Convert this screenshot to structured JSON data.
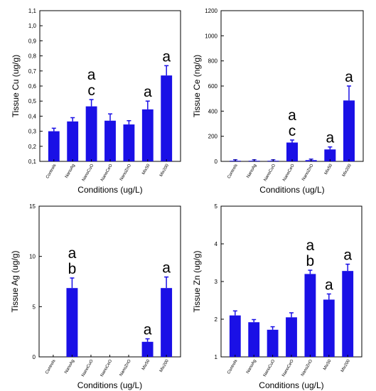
{
  "colors": {
    "bar": "#1a10e6",
    "axis": "#000000"
  },
  "chart_data": [
    {
      "type": "bar",
      "ylabel": "Tissue Cu (ug/g)",
      "xlabel": "Conditions (ug/L)",
      "categories": [
        "Controls",
        "NanoAg",
        "NanoCuO",
        "NanoCeO",
        "NanoZnO",
        "Mix50",
        "Mix200"
      ],
      "values": [
        0.3,
        0.365,
        0.465,
        0.37,
        0.345,
        0.445,
        0.67
      ],
      "errors": [
        0.02,
        0.025,
        0.045,
        0.045,
        0.025,
        0.055,
        0.065
      ],
      "ylim": [
        0.1,
        1.1
      ],
      "yticks": [
        "0,1",
        "0,2",
        "0,3",
        "0,4",
        "0,5",
        "0,6",
        "0,7",
        "0,8",
        "0,9",
        "1,0",
        "1,1"
      ],
      "ytick_values": [
        0.1,
        0.2,
        0.3,
        0.4,
        0.5,
        0.6,
        0.7,
        0.8,
        0.9,
        1.0,
        1.1
      ],
      "annotations": [
        {
          "category": "NanoCuO",
          "letters": [
            "a",
            "c"
          ]
        },
        {
          "category": "Mix50",
          "letters": [
            "a"
          ]
        },
        {
          "category": "Mix200",
          "letters": [
            "a"
          ]
        }
      ]
    },
    {
      "type": "bar",
      "ylabel": "Tissue Ce (ng/g)",
      "xlabel": "Conditions (ug/L)",
      "categories": [
        "Controls",
        "NanoAg",
        "NanoCuO",
        "NanoCeO",
        "NanoZnO",
        "Mix50",
        "Mix200"
      ],
      "values": [
        5,
        5,
        5,
        150,
        10,
        95,
        485
      ],
      "errors": [
        8,
        8,
        8,
        20,
        8,
        20,
        115
      ],
      "ylim": [
        0,
        1200
      ],
      "yticks": [
        "0",
        "200",
        "400",
        "600",
        "800",
        "1000",
        "1200"
      ],
      "ytick_values": [
        0,
        200,
        400,
        600,
        800,
        1000,
        1200
      ],
      "annotations": [
        {
          "category": "NanoCeO",
          "letters": [
            "a",
            "c"
          ]
        },
        {
          "category": "Mix50",
          "letters": [
            "a"
          ]
        },
        {
          "category": "Mix200",
          "letters": [
            "a"
          ]
        }
      ]
    },
    {
      "type": "bar",
      "ylabel": "Tissue Ag (ug/g)",
      "xlabel": "Conditions (ug/L)",
      "categories": [
        "Controls",
        "NanoAg",
        "NanoCuO",
        "NanoCeO",
        "NanoZnO",
        "Mix50",
        "Mix200"
      ],
      "values": [
        0,
        6.85,
        0,
        0,
        0,
        1.5,
        6.85
      ],
      "errors": [
        0,
        1.0,
        0,
        0,
        0,
        0.3,
        1.1
      ],
      "ylim": [
        0,
        15
      ],
      "yticks": [
        "0",
        "5",
        "10",
        "15"
      ],
      "ytick_values": [
        0,
        5,
        10,
        15
      ],
      "annotations": [
        {
          "category": "NanoAg",
          "letters": [
            "a",
            "b"
          ]
        },
        {
          "category": "Mix50",
          "letters": [
            "a"
          ]
        },
        {
          "category": "Mix200",
          "letters": [
            "a"
          ]
        }
      ]
    },
    {
      "type": "bar",
      "ylabel": "Tissue Zn (ug/g)",
      "xlabel": "Conditions (ug/L)",
      "categories": [
        "Controls",
        "NanoAg",
        "NanoCuO",
        "NanoCeO",
        "NanoZnO",
        "Mix50",
        "Mix200"
      ],
      "values": [
        2.1,
        1.92,
        1.72,
        2.05,
        3.2,
        2.52,
        3.28
      ],
      "errors": [
        0.12,
        0.07,
        0.08,
        0.12,
        0.1,
        0.15,
        0.18
      ],
      "ylim": [
        1,
        5
      ],
      "yticks": [
        "1",
        "2",
        "3",
        "4",
        "5"
      ],
      "ytick_values": [
        1,
        2,
        3,
        4,
        5
      ],
      "annotations": [
        {
          "category": "NanoZnO",
          "letters": [
            "a",
            "b"
          ]
        },
        {
          "category": "Mix50",
          "letters": [
            "a"
          ]
        },
        {
          "category": "Mix200",
          "letters": [
            "a"
          ]
        }
      ]
    }
  ]
}
